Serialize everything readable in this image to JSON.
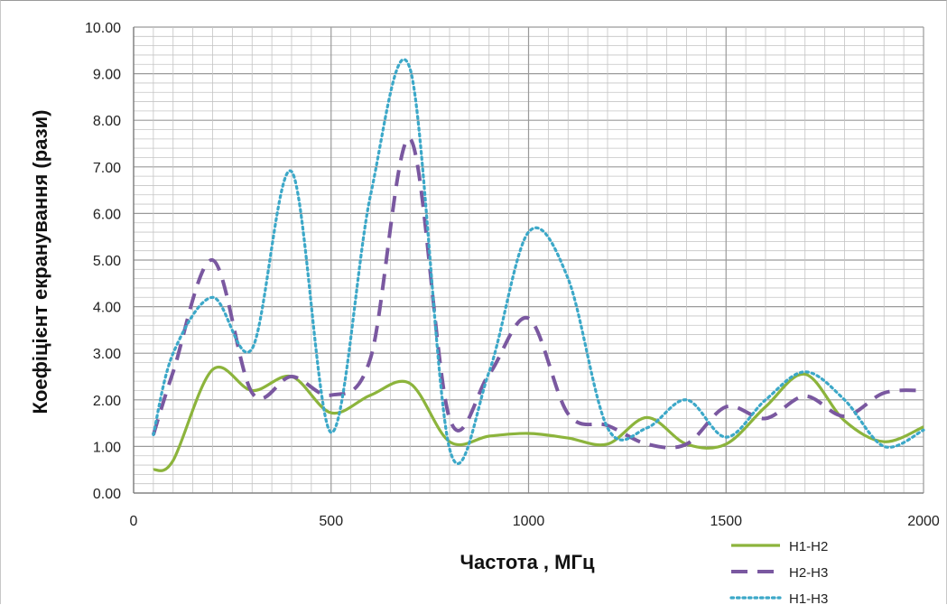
{
  "chart_data": {
    "type": "line",
    "title": "",
    "xlabel": "Частота , МГц",
    "ylabel": "Коефіцієнт екранування   (рази)",
    "xlim": [
      0,
      2000
    ],
    "ylim": [
      0,
      10
    ],
    "x_ticks": [
      "0",
      "500",
      "1000",
      "1500",
      "2000"
    ],
    "y_ticks": [
      "0.00",
      "1.00",
      "2.00",
      "3.00",
      "4.00",
      "5.00",
      "6.00",
      "7.00",
      "8.00",
      "9.00",
      "10.00"
    ],
    "grid": true,
    "legend_position": "bottom-right",
    "x": [
      50,
      100,
      200,
      300,
      400,
      500,
      600,
      700,
      800,
      900,
      1000,
      1100,
      1200,
      1300,
      1400,
      1500,
      1600,
      1700,
      1800,
      1900,
      2000
    ],
    "series": [
      {
        "name": "H1-H2",
        "color": "#8cb43c",
        "style": "solid",
        "values": [
          0.5,
          0.7,
          2.65,
          2.2,
          2.5,
          1.72,
          2.1,
          2.35,
          1.1,
          1.22,
          1.28,
          1.18,
          1.05,
          1.62,
          1.05,
          1.05,
          1.85,
          2.55,
          1.55,
          1.1,
          1.42
        ]
      },
      {
        "name": "H2-H3",
        "color": "#7a58a0",
        "style": "dashed",
        "values": [
          1.25,
          2.6,
          5.0,
          2.15,
          2.5,
          2.1,
          2.9,
          7.6,
          1.6,
          2.55,
          3.75,
          1.7,
          1.45,
          1.05,
          1.05,
          1.85,
          1.6,
          2.08,
          1.65,
          2.15,
          2.2
        ]
      },
      {
        "name": "H1-H3",
        "color": "#3ca8c8",
        "style": "dotted",
        "values": [
          1.25,
          3.0,
          4.2,
          3.1,
          6.9,
          1.3,
          6.4,
          9.1,
          0.95,
          2.6,
          5.6,
          4.6,
          1.4,
          1.4,
          2.0,
          1.2,
          2.0,
          2.6,
          2.0,
          1.0,
          1.35
        ]
      }
    ]
  }
}
